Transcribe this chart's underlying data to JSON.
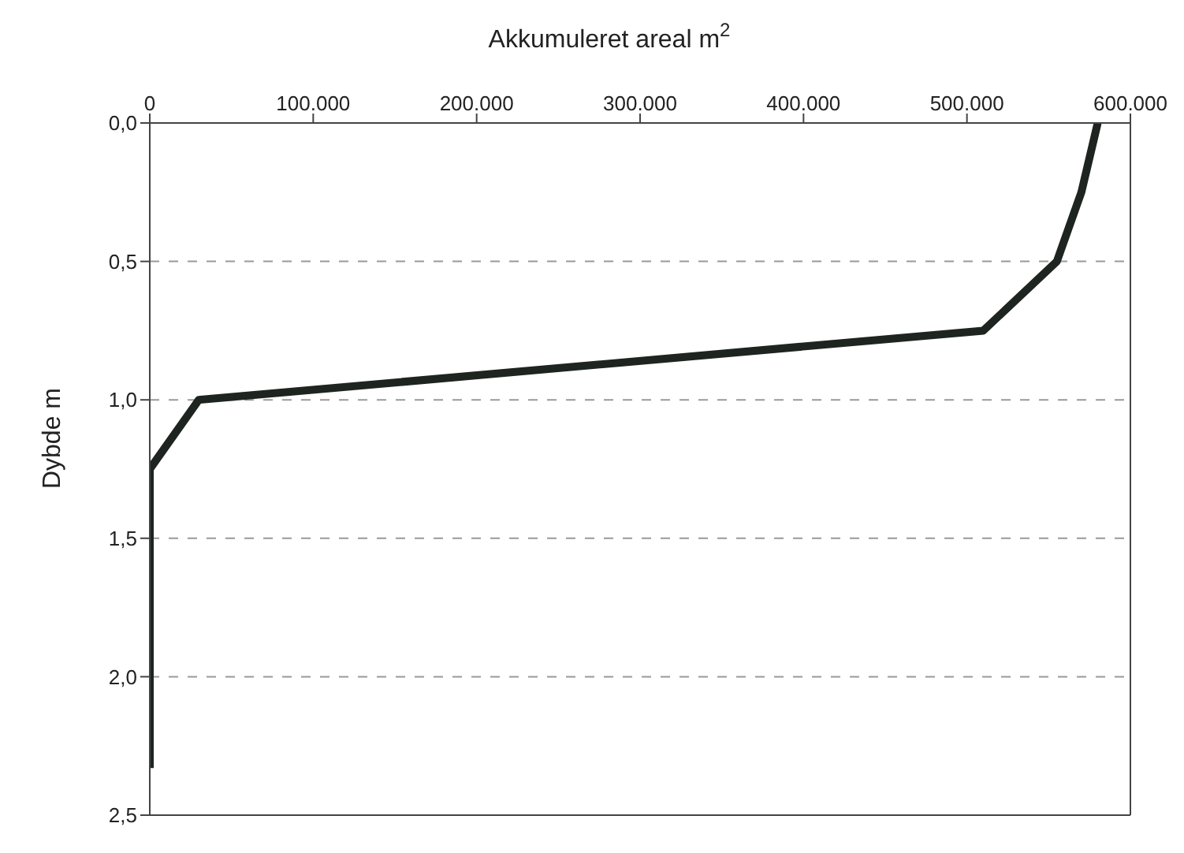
{
  "chart_data": {
    "type": "line",
    "xlabel": "Akkumuleret areal m$^{2}$",
    "ylabel": "Dybde m",
    "series": [
      {
        "color": "#1e2420",
        "x": [
          580000,
          570000,
          555000,
          510000,
          30000,
          0,
          0,
          0,
          0,
          0,
          0
        ],
        "values": [
          0,
          0.25,
          0.5,
          0.75,
          1.0,
          1.25,
          1.5,
          1.75,
          2.0,
          2.25,
          2.33
        ]
      }
    ],
    "xlim": [
      0,
      600000
    ],
    "xticks": [
      0,
      {
        "value": 100000,
        "label": "100.000"
      },
      {
        "value": 200000,
        "label": "200.000"
      },
      {
        "value": 300000,
        "label": "300.000"
      },
      {
        "value": 400000,
        "label": "400.000"
      },
      {
        "value": 500000,
        "label": "500.000"
      },
      {
        "value": 600000,
        "label": "600.000"
      }
    ],
    "ylim": [
      2.5,
      0
    ],
    "yticks": [
      {
        "value": 0,
        "label": "0,0"
      },
      {
        "value": 0.5,
        "label": "0,5"
      },
      {
        "value": 1,
        "label": "1,0"
      },
      {
        "value": 1.5,
        "label": "1,5"
      },
      {
        "value": 2,
        "label": "2,0"
      },
      {
        "value": 2.5,
        "label": "2,5"
      }
    ],
    "grid": "y",
    "marker": "none",
    "line_style": "solid"
  }
}
